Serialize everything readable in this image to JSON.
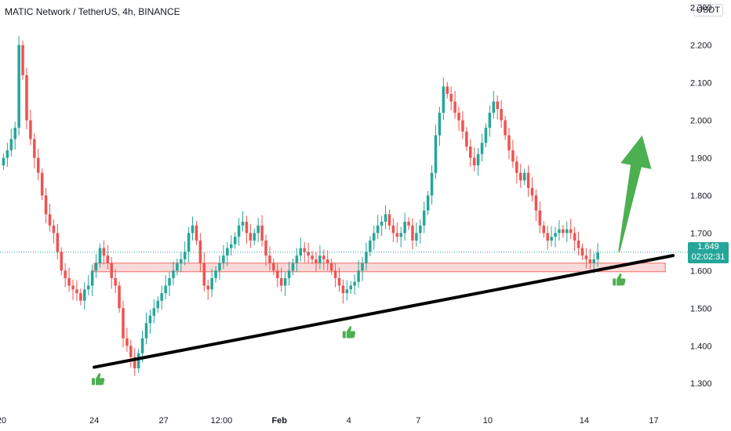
{
  "header": {
    "title": "MATIC Network / TetherUS, 4h, BINANCE",
    "unit": "USDT"
  },
  "last_price": {
    "value": "1.649",
    "countdown": "02:02:31"
  },
  "colors": {
    "up": "#26a69a",
    "down": "#ef5350",
    "zone_fill": "#f9d4d4",
    "zone_border": "#ef5350",
    "trendline": "#000000",
    "arrow": "#4caf50",
    "thumb": "#4caf50",
    "price_line": "#26a69a"
  },
  "chart_data": {
    "type": "candlestick",
    "title": "MATIC Network / TetherUS, 4h, BINANCE",
    "ylim": [
      1.24,
      2.32
    ],
    "y_ticks": [
      "2.300",
      "2.200",
      "2.100",
      "2.000",
      "1.900",
      "1.800",
      "1.700",
      "1.600",
      "1.500",
      "1.400",
      "1.300"
    ],
    "x_ticks": [
      {
        "label": "20",
        "bar": 0,
        "bold": false
      },
      {
        "label": "24",
        "bar": 24,
        "bold": false
      },
      {
        "label": "27",
        "bar": 42,
        "bold": false
      },
      {
        "label": "12:00",
        "bar": 57,
        "bold": false
      },
      {
        "label": "Feb",
        "bar": 72,
        "bold": true
      },
      {
        "label": "4",
        "bar": 90,
        "bold": false
      },
      {
        "label": "7",
        "bar": 108,
        "bold": false
      },
      {
        "label": "10",
        "bar": 126,
        "bold": false
      },
      {
        "label": "14",
        "bar": 151,
        "bold": false
      },
      {
        "label": "17",
        "bar": 169,
        "bold": false
      }
    ],
    "closes": [
      1.9,
      1.92,
      1.95,
      1.98,
      2.2,
      2.12,
      2.0,
      1.95,
      1.9,
      1.86,
      1.8,
      1.75,
      1.72,
      1.7,
      1.65,
      1.6,
      1.58,
      1.56,
      1.55,
      1.54,
      1.52,
      1.55,
      1.56,
      1.6,
      1.62,
      1.66,
      1.64,
      1.62,
      1.58,
      1.56,
      1.5,
      1.42,
      1.4,
      1.37,
      1.34,
      1.38,
      1.42,
      1.46,
      1.48,
      1.5,
      1.52,
      1.54,
      1.56,
      1.58,
      1.6,
      1.62,
      1.63,
      1.65,
      1.7,
      1.72,
      1.68,
      1.62,
      1.56,
      1.55,
      1.58,
      1.6,
      1.62,
      1.64,
      1.66,
      1.67,
      1.69,
      1.72,
      1.73,
      1.7,
      1.68,
      1.7,
      1.72,
      1.68,
      1.64,
      1.62,
      1.6,
      1.58,
      1.56,
      1.58,
      1.6,
      1.62,
      1.64,
      1.66,
      1.65,
      1.64,
      1.63,
      1.62,
      1.64,
      1.63,
      1.62,
      1.6,
      1.58,
      1.56,
      1.54,
      1.55,
      1.56,
      1.57,
      1.6,
      1.62,
      1.65,
      1.68,
      1.7,
      1.72,
      1.73,
      1.75,
      1.72,
      1.7,
      1.69,
      1.7,
      1.73,
      1.72,
      1.68,
      1.7,
      1.72,
      1.76,
      1.8,
      1.86,
      1.96,
      2.02,
      2.09,
      2.07,
      2.05,
      2.02,
      2.0,
      1.97,
      1.93,
      1.9,
      1.88,
      1.91,
      1.94,
      1.98,
      2.02,
      2.05,
      2.03,
      2.0,
      1.96,
      1.92,
      1.89,
      1.86,
      1.84,
      1.86,
      1.82,
      1.8,
      1.76,
      1.72,
      1.7,
      1.68,
      1.69,
      1.7,
      1.71,
      1.7,
      1.71,
      1.7,
      1.68,
      1.66,
      1.64,
      1.63,
      1.62,
      1.63,
      1.649
    ],
    "trendline": {
      "from": {
        "bar": 24,
        "y": 1.343
      },
      "to": {
        "bar": 174,
        "y": 1.64
      }
    },
    "support_zone": {
      "bar_start": 24,
      "bar_end": 172,
      "y_top": 1.62,
      "y_bottom": 1.597
    },
    "last_price": 1.649,
    "annotations": [
      {
        "type": "thumbs-up",
        "bar": 25,
        "y": 1.31
      },
      {
        "type": "thumbs-up",
        "bar": 90,
        "y": 1.435
      },
      {
        "type": "thumbs-up",
        "bar": 160,
        "y": 1.575
      },
      {
        "type": "arrow-up",
        "from": {
          "bar": 160,
          "y": 1.65
        },
        "to": {
          "bar": 166,
          "y": 1.96
        }
      }
    ]
  }
}
